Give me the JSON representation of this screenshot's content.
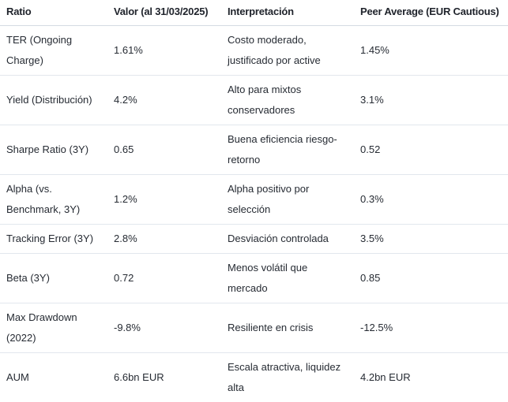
{
  "colors": {
    "background": "#ffffff",
    "text": "#20242c",
    "header_border": "#d4dbe3",
    "row_border": "#e2e7ed"
  },
  "table": {
    "headers": {
      "ratio": "Ratio",
      "valor": "Valor (al 31/03/2025)",
      "interpretacion": "Interpretación",
      "peer": "Peer Average (EUR Cautious)"
    },
    "rows": [
      {
        "ratio": "TER (Ongoing Charge)",
        "valor": "1.61%",
        "interpretacion": "Costo moderado, justificado por active",
        "peer": "1.45%"
      },
      {
        "ratio": "Yield (Distribución)",
        "valor": "4.2%",
        "interpretacion": "Alto para mixtos conservadores",
        "peer": "3.1%"
      },
      {
        "ratio": "Sharpe Ratio (3Y)",
        "valor": "0.65",
        "interpretacion": "Buena eficiencia riesgo-retorno",
        "peer": "0.52"
      },
      {
        "ratio": "Alpha (vs. Benchmark, 3Y)",
        "valor": "1.2%",
        "interpretacion": "Alpha positivo por selección",
        "peer": "0.3%"
      },
      {
        "ratio": "Tracking Error (3Y)",
        "valor": "2.8%",
        "interpretacion": "Desviación controlada",
        "peer": "3.5%"
      },
      {
        "ratio": "Beta (3Y)",
        "valor": "0.72",
        "interpretacion": "Menos volátil que mercado",
        "peer": "0.85"
      },
      {
        "ratio": "Max Drawdown (2022)",
        "valor": "-9.8%",
        "interpretacion": "Resiliente en crisis",
        "peer": "-12.5%"
      },
      {
        "ratio": "AUM",
        "valor": "6.6bn EUR",
        "interpretacion": "Escala atractiva, liquidez alta",
        "peer": "4.2bn EUR"
      }
    ]
  }
}
